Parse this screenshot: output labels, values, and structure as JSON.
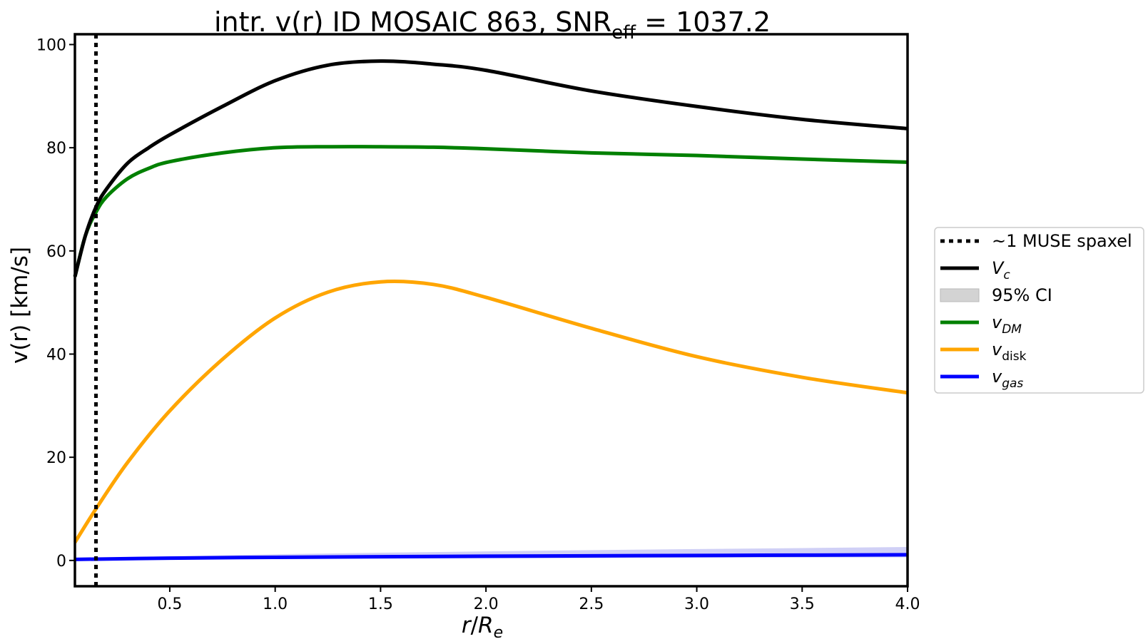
{
  "chart_data": {
    "type": "line",
    "title": {
      "prefix": "intr. v(r) ID MOSAIC 863, SNR",
      "sub": "eff",
      "suffix": " = 1037.2"
    },
    "xlabel": {
      "main": "r",
      "slash": "/",
      "var": "R",
      "sub": "e"
    },
    "ylabel": "v(r) [km/s]",
    "xlim": [
      0.05,
      4.0
    ],
    "ylim": [
      -5,
      102
    ],
    "xticks": [
      "0.5",
      "1.0",
      "1.5",
      "2.0",
      "2.5",
      "3.0",
      "3.5",
      "4.0"
    ],
    "yticks": [
      "0",
      "20",
      "40",
      "60",
      "80",
      "100"
    ],
    "grid": false,
    "legend_position": "right",
    "spaxel_line_x": 0.15,
    "colors": {
      "v_c": "#000000",
      "ci": "#d3d3d3",
      "gas_band": "#c8c8f5",
      "v_dm": "#008000",
      "v_disk": "#ffa500",
      "v_gas": "#0000ff"
    },
    "series": [
      {
        "key": "v_c",
        "x": [
          0.05,
          0.1,
          0.15,
          0.2,
          0.3,
          0.4,
          0.5,
          0.75,
          1.0,
          1.25,
          1.5,
          1.75,
          2.0,
          2.5,
          3.0,
          3.5,
          4.0
        ],
        "values": [
          55,
          63,
          68.5,
          72,
          77,
          80,
          82.5,
          88,
          93,
          96,
          96.8,
          96.2,
          95,
          91,
          88,
          85.5,
          83.7
        ]
      },
      {
        "key": "v_dm",
        "x": [
          0.05,
          0.1,
          0.15,
          0.2,
          0.3,
          0.4,
          0.5,
          0.75,
          1.0,
          1.25,
          1.5,
          1.75,
          2.0,
          2.5,
          3.0,
          3.5,
          4.0
        ],
        "values": [
          55,
          63,
          67.5,
          70.5,
          74,
          76,
          77.3,
          79,
          80,
          80.2,
          80.2,
          80.1,
          79.8,
          79,
          78.5,
          77.8,
          77.2
        ]
      },
      {
        "key": "v_disk",
        "x": [
          0.05,
          0.15,
          0.3,
          0.5,
          0.75,
          1.0,
          1.25,
          1.5,
          1.75,
          2.0,
          2.5,
          3.0,
          3.5,
          4.0
        ],
        "values": [
          3.5,
          10,
          19,
          29,
          39,
          47,
          52,
          54,
          53.5,
          51,
          45,
          39.5,
          35.5,
          32.5
        ]
      },
      {
        "key": "v_gas",
        "x": [
          0.05,
          0.5,
          1.0,
          1.5,
          2.0,
          2.5,
          3.0,
          3.5,
          4.0
        ],
        "values": [
          0.2,
          0.45,
          0.6,
          0.72,
          0.82,
          0.9,
          0.97,
          1.03,
          1.1
        ],
        "band_upper": [
          0.4,
          0.8,
          1.2,
          1.5,
          1.75,
          2.0,
          2.2,
          2.4,
          2.6
        ],
        "band_lower": [
          0.05,
          0.15,
          0.25,
          0.35,
          0.4,
          0.45,
          0.5,
          0.55,
          0.6
        ]
      }
    ],
    "legend": [
      {
        "key": "spaxel",
        "label": "~1 MUSE spaxel"
      },
      {
        "key": "v_c",
        "sym": "V",
        "sub": "c"
      },
      {
        "key": "ci",
        "label": "95% CI"
      },
      {
        "key": "v_dm",
        "sym": "v",
        "sub": "DM"
      },
      {
        "key": "v_disk",
        "sym": "v",
        "sub": "disk"
      },
      {
        "key": "v_gas",
        "sym": "v",
        "sub": "gas"
      }
    ]
  }
}
